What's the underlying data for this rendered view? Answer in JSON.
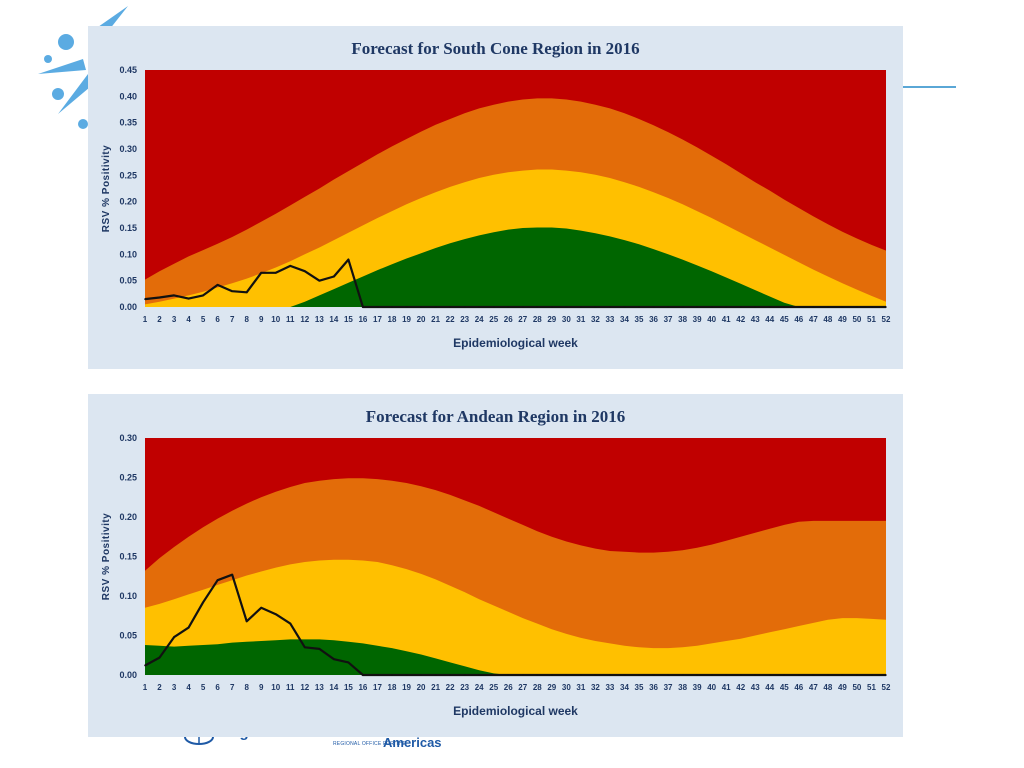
{
  "footer": {
    "org_text": "Organization",
    "region_small": "REGIONAL OFFICE FOR THE",
    "region_big": "Americas"
  },
  "colors": {
    "panel_bg": "#dce6f1",
    "epidemic_high": "#c00000",
    "alert": "#e36c09",
    "seasonal": "#ffc000",
    "low": "#006600",
    "observed_line": "#111111",
    "text": "#1f3864"
  },
  "chart_data": [
    {
      "type": "area",
      "title": "Forecast for South Cone Region in 2016",
      "xlabel": "Epidemiological week",
      "ylabel": "RSV % Positivity",
      "x": [
        1,
        2,
        3,
        4,
        5,
        6,
        7,
        8,
        9,
        10,
        11,
        12,
        13,
        14,
        15,
        16,
        17,
        18,
        19,
        20,
        21,
        22,
        23,
        24,
        25,
        26,
        27,
        28,
        29,
        30,
        31,
        32,
        33,
        34,
        35,
        36,
        37,
        38,
        39,
        40,
        41,
        42,
        43,
        44,
        45,
        46,
        47,
        48,
        49,
        50,
        51,
        52
      ],
      "ylim": [
        0,
        0.45
      ],
      "yticks": [
        "0.00",
        "0.05",
        "0.10",
        "0.15",
        "0.20",
        "0.25",
        "0.30",
        "0.35",
        "0.40",
        "0.45"
      ],
      "grid": false,
      "bands": {
        "green_top": [
          0,
          0,
          0,
          0,
          0,
          0,
          0,
          0,
          0,
          0,
          0,
          0.01,
          0.022,
          0.034,
          0.046,
          0.058,
          0.07,
          0.081,
          0.092,
          0.102,
          0.112,
          0.121,
          0.129,
          0.136,
          0.142,
          0.147,
          0.15,
          0.151,
          0.151,
          0.149,
          0.145,
          0.14,
          0.134,
          0.127,
          0.119,
          0.11,
          0.1,
          0.09,
          0.079,
          0.068,
          0.056,
          0.044,
          0.032,
          0.02,
          0.008,
          0,
          0,
          0,
          0,
          0,
          0,
          0
        ],
        "yellow_top": [
          0.005,
          0.01,
          0.016,
          0.022,
          0.029,
          0.037,
          0.045,
          0.054,
          0.064,
          0.075,
          0.087,
          0.1,
          0.113,
          0.127,
          0.141,
          0.155,
          0.169,
          0.182,
          0.195,
          0.207,
          0.218,
          0.228,
          0.237,
          0.245,
          0.251,
          0.256,
          0.259,
          0.261,
          0.261,
          0.259,
          0.256,
          0.251,
          0.245,
          0.237,
          0.228,
          0.218,
          0.207,
          0.195,
          0.182,
          0.169,
          0.155,
          0.141,
          0.127,
          0.113,
          0.099,
          0.085,
          0.071,
          0.058,
          0.045,
          0.033,
          0.021,
          0.01
        ],
        "orange_top": [
          0.052,
          0.068,
          0.082,
          0.096,
          0.108,
          0.12,
          0.133,
          0.147,
          0.162,
          0.177,
          0.193,
          0.209,
          0.225,
          0.242,
          0.258,
          0.274,
          0.29,
          0.305,
          0.319,
          0.333,
          0.346,
          0.357,
          0.368,
          0.377,
          0.384,
          0.39,
          0.394,
          0.396,
          0.396,
          0.394,
          0.39,
          0.384,
          0.377,
          0.368,
          0.357,
          0.345,
          0.332,
          0.318,
          0.303,
          0.287,
          0.271,
          0.254,
          0.237,
          0.221,
          0.204,
          0.188,
          0.172,
          0.157,
          0.143,
          0.13,
          0.118,
          0.107
        ]
      },
      "series": [
        {
          "name": "",
          "values": [
            0.015,
            0.018,
            0.022,
            0.016,
            0.022,
            0.042,
            0.03,
            0.028,
            0.065,
            0.065,
            0.078,
            0.068,
            0.05,
            0.058,
            0.09,
            0,
            0,
            0,
            0,
            0,
            0,
            0,
            0,
            0,
            0,
            0,
            0,
            0,
            0,
            0,
            0,
            0,
            0,
            0,
            0,
            0,
            0,
            0,
            0,
            0,
            0,
            0,
            0,
            0,
            0,
            0,
            0,
            0,
            0,
            0,
            0,
            0
          ]
        }
      ]
    },
    {
      "type": "area",
      "title": "Forecast for Andean Region in 2016",
      "xlabel": "Epidemiological week",
      "ylabel": "RSV % Positivity",
      "x": [
        1,
        2,
        3,
        4,
        5,
        6,
        7,
        8,
        9,
        10,
        11,
        12,
        13,
        14,
        15,
        16,
        17,
        18,
        19,
        20,
        21,
        22,
        23,
        24,
        25,
        26,
        27,
        28,
        29,
        30,
        31,
        32,
        33,
        34,
        35,
        36,
        37,
        38,
        39,
        40,
        41,
        42,
        43,
        44,
        45,
        46,
        47,
        48,
        49,
        50,
        51,
        52
      ],
      "ylim": [
        0,
        0.3
      ],
      "yticks": [
        "0.00",
        "0.05",
        "0.10",
        "0.15",
        "0.20",
        "0.25",
        "0.30"
      ],
      "grid": false,
      "bands": {
        "green_top": [
          0.038,
          0.037,
          0.036,
          0.037,
          0.038,
          0.039,
          0.041,
          0.042,
          0.043,
          0.044,
          0.045,
          0.045,
          0.045,
          0.044,
          0.042,
          0.04,
          0.037,
          0.034,
          0.03,
          0.026,
          0.021,
          0.016,
          0.011,
          0.006,
          0.002,
          0,
          0,
          0,
          0,
          0,
          0,
          0,
          0,
          0,
          0,
          0,
          0,
          0,
          0,
          0,
          0,
          0,
          0,
          0,
          0,
          0,
          0,
          0,
          0,
          0,
          0,
          0
        ],
        "yellow_top": [
          0.085,
          0.09,
          0.096,
          0.102,
          0.108,
          0.114,
          0.12,
          0.126,
          0.131,
          0.136,
          0.14,
          0.143,
          0.145,
          0.146,
          0.146,
          0.145,
          0.143,
          0.139,
          0.134,
          0.128,
          0.121,
          0.113,
          0.105,
          0.096,
          0.088,
          0.08,
          0.072,
          0.065,
          0.058,
          0.052,
          0.047,
          0.043,
          0.04,
          0.037,
          0.035,
          0.034,
          0.034,
          0.035,
          0.037,
          0.04,
          0.043,
          0.046,
          0.05,
          0.054,
          0.058,
          0.062,
          0.066,
          0.07,
          0.072,
          0.072,
          0.071,
          0.07
        ],
        "orange_top": [
          0.132,
          0.148,
          0.162,
          0.175,
          0.187,
          0.198,
          0.208,
          0.217,
          0.225,
          0.232,
          0.238,
          0.243,
          0.246,
          0.248,
          0.249,
          0.249,
          0.248,
          0.246,
          0.243,
          0.239,
          0.234,
          0.228,
          0.221,
          0.214,
          0.206,
          0.198,
          0.19,
          0.182,
          0.175,
          0.169,
          0.164,
          0.16,
          0.157,
          0.156,
          0.155,
          0.155,
          0.156,
          0.158,
          0.161,
          0.165,
          0.17,
          0.175,
          0.18,
          0.185,
          0.19,
          0.194,
          0.195,
          0.195,
          0.195,
          0.195,
          0.195,
          0.195
        ]
      },
      "series": [
        {
          "name": "",
          "values": [
            0.012,
            0.022,
            0.048,
            0.06,
            0.092,
            0.12,
            0.127,
            0.068,
            0.085,
            0.077,
            0.065,
            0.035,
            0.033,
            0.02,
            0.016,
            0,
            0,
            0,
            0,
            0,
            0,
            0,
            0,
            0,
            0,
            0,
            0,
            0,
            0,
            0,
            0,
            0,
            0,
            0,
            0,
            0,
            0,
            0,
            0,
            0,
            0,
            0,
            0,
            0,
            0,
            0,
            0,
            0,
            0,
            0,
            0,
            0
          ]
        }
      ]
    }
  ]
}
